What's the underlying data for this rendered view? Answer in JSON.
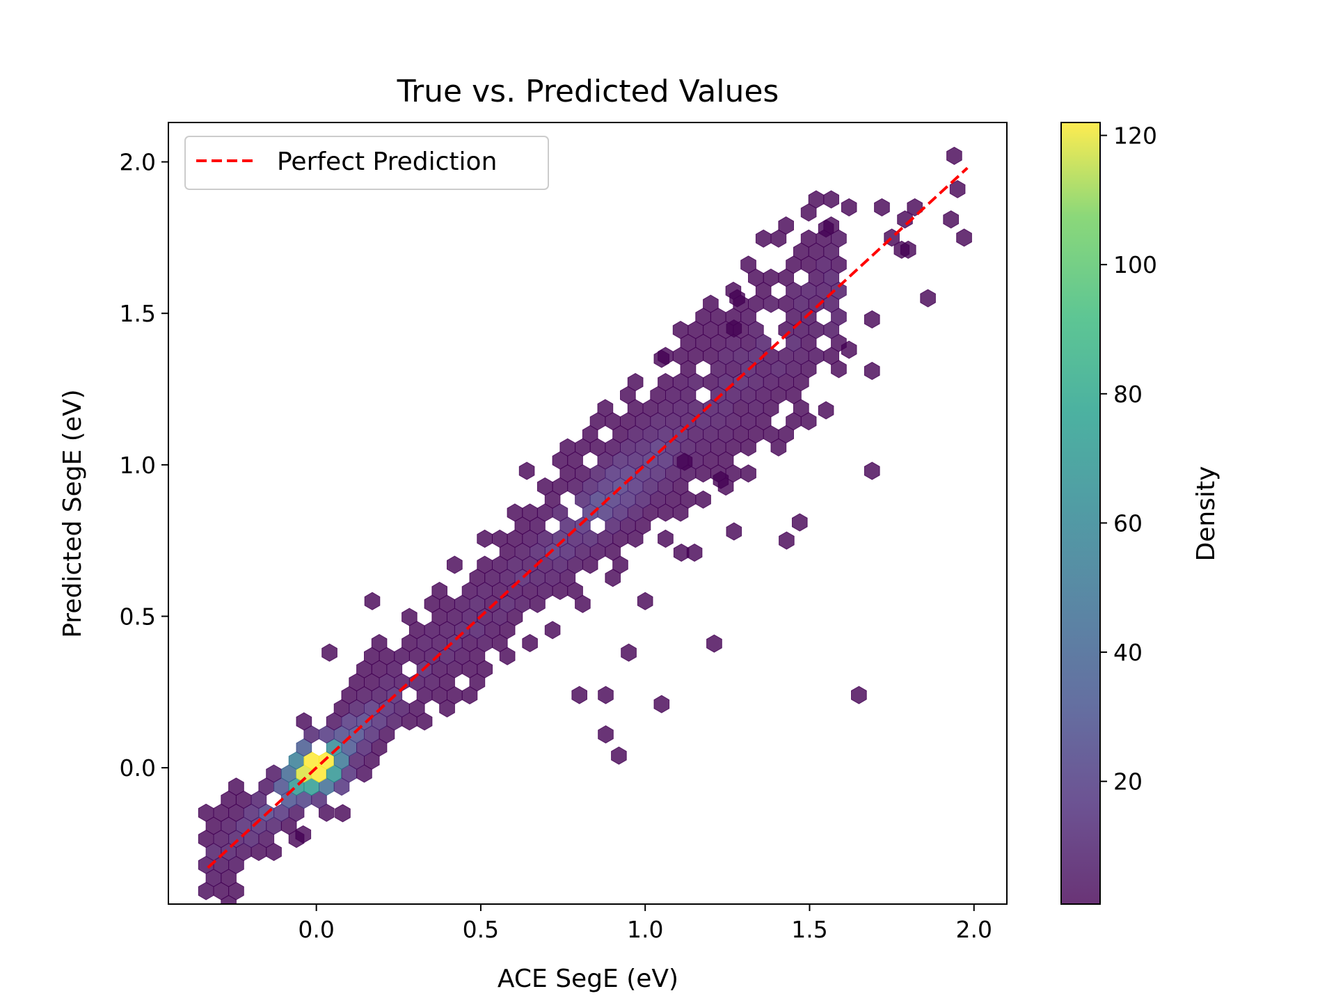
{
  "chart_data": {
    "type": "hexbin",
    "title": "True vs. Predicted Values",
    "xlabel": "ACE SegE (eV)",
    "ylabel": "Predicted SegE (eV)",
    "xlim": [
      -0.45,
      2.1
    ],
    "ylim": [
      -0.45,
      2.13
    ],
    "xticks": [
      0.0,
      0.5,
      1.0,
      1.5,
      2.0
    ],
    "xtick_labels": [
      "0.0",
      "0.5",
      "1.0",
      "1.5",
      "2.0"
    ],
    "yticks": [
      0.0,
      0.5,
      1.0,
      1.5,
      2.0
    ],
    "ytick_labels": [
      "0.0",
      "0.5",
      "1.0",
      "1.5",
      "2.0"
    ],
    "grid": false,
    "colormap": "viridis",
    "colorbar": {
      "label": "Density",
      "range": [
        1,
        122
      ],
      "ticks": [
        20,
        40,
        60,
        80,
        100,
        120
      ],
      "tick_labels": [
        "20",
        "40",
        "60",
        "80",
        "100",
        "120"
      ]
    },
    "reference_line": {
      "name": "Perfect Prediction",
      "color": "#ff0000",
      "style": "dashed",
      "points": [
        [
          -0.33,
          -0.33
        ],
        [
          1.98,
          1.98
        ]
      ]
    },
    "legend": {
      "position": "upper-left",
      "entries": [
        "Perfect Prediction"
      ]
    },
    "bins": [
      {
        "x": 1.94,
        "y": 2.02,
        "count": 1
      },
      {
        "x": 1.95,
        "y": 1.91,
        "count": 1
      },
      {
        "x": 1.93,
        "y": 1.81,
        "count": 1
      },
      {
        "x": 1.97,
        "y": 1.75,
        "count": 1
      },
      {
        "x": 1.62,
        "y": 1.85,
        "count": 1
      },
      {
        "x": 1.72,
        "y": 1.85,
        "count": 1
      },
      {
        "x": 1.82,
        "y": 1.85,
        "count": 1
      },
      {
        "x": 1.79,
        "y": 1.81,
        "count": 1
      },
      {
        "x": 1.55,
        "y": 1.78,
        "count": 1
      },
      {
        "x": 1.75,
        "y": 1.75,
        "count": 1
      },
      {
        "x": 1.8,
        "y": 1.71,
        "count": 1
      },
      {
        "x": 1.78,
        "y": 1.71,
        "count": 1
      },
      {
        "x": 1.86,
        "y": 1.55,
        "count": 1
      },
      {
        "x": 1.69,
        "y": 1.48,
        "count": 1
      },
      {
        "x": 1.62,
        "y": 1.38,
        "count": 1
      },
      {
        "x": 1.69,
        "y": 1.31,
        "count": 1
      },
      {
        "x": 1.55,
        "y": 1.18,
        "count": 1
      },
      {
        "x": 1.69,
        "y": 0.98,
        "count": 1
      },
      {
        "x": 1.47,
        "y": 0.81,
        "count": 1
      },
      {
        "x": 1.43,
        "y": 0.75,
        "count": 1
      },
      {
        "x": 1.27,
        "y": 0.78,
        "count": 1
      },
      {
        "x": 1.15,
        "y": 0.71,
        "count": 1
      },
      {
        "x": 1.11,
        "y": 0.71,
        "count": 1
      },
      {
        "x": 1.21,
        "y": 0.41,
        "count": 1
      },
      {
        "x": 1.65,
        "y": 0.24,
        "count": 1
      },
      {
        "x": 1.05,
        "y": 0.21,
        "count": 1
      },
      {
        "x": 0.8,
        "y": 0.24,
        "count": 1
      },
      {
        "x": 0.88,
        "y": 0.24,
        "count": 1
      },
      {
        "x": 0.88,
        "y": 0.11,
        "count": 1
      },
      {
        "x": 0.92,
        "y": 0.04,
        "count": 1
      },
      {
        "x": 0.95,
        "y": 0.38,
        "count": 1
      },
      {
        "x": 1.0,
        "y": 0.55,
        "count": 1
      },
      {
        "x": 1.28,
        "y": 1.55,
        "count": 1
      },
      {
        "x": 1.27,
        "y": 1.45,
        "count": 1
      },
      {
        "x": 1.05,
        "y": 1.35,
        "count": 1
      },
      {
        "x": 1.12,
        "y": 1.01,
        "count": 1
      },
      {
        "x": 1.23,
        "y": 0.95,
        "count": 1
      },
      {
        "x": 0.64,
        "y": 0.98,
        "count": 1
      },
      {
        "x": 0.17,
        "y": 0.55,
        "count": 1
      },
      {
        "x": 0.04,
        "y": 0.38,
        "count": 1
      },
      {
        "x": -0.04,
        "y": -0.22,
        "count": 1
      },
      {
        "x": 0.08,
        "y": -0.15,
        "count": 1
      }
    ]
  }
}
